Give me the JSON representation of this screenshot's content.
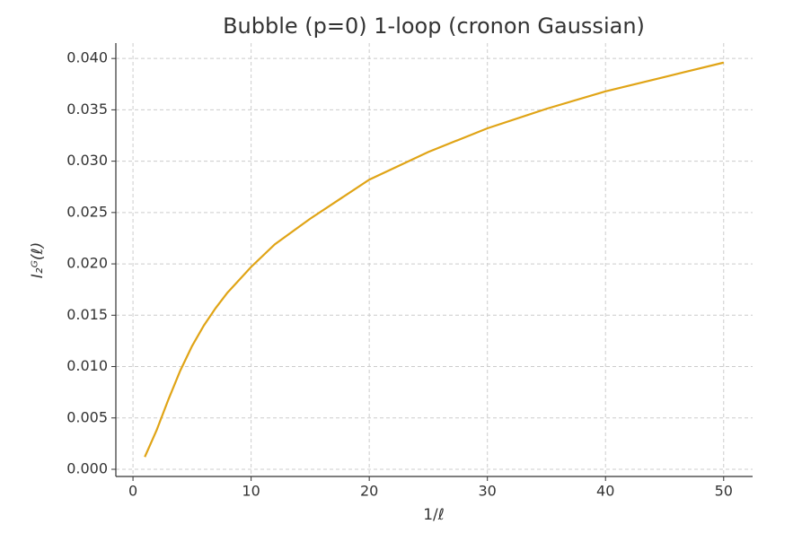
{
  "chart_data": {
    "type": "line",
    "title": "Bubble (p=0) 1-loop (cronon Gaussian)",
    "x_label": "1/ℓ",
    "y_label": "I₂ᴳ(ℓ)",
    "x": [
      1,
      2,
      3,
      4,
      5,
      6,
      7,
      8,
      10,
      12,
      15,
      20,
      25,
      30,
      35,
      40,
      45,
      50
    ],
    "series": [
      {
        "color": "#e0a416",
        "values": [
          0.0012,
          0.0038,
          0.0068,
          0.0096,
          0.012,
          0.014,
          0.0157,
          0.0172,
          0.0197,
          0.0219,
          0.0244,
          0.0282,
          0.0309,
          0.0332,
          0.0351,
          0.0368,
          0.0382,
          0.0396
        ]
      }
    ],
    "xlim": [
      -1.45,
      52.45
    ],
    "ylim": [
      -0.0007,
      0.0415
    ],
    "xticks": [
      0,
      10,
      20,
      30,
      40,
      50
    ],
    "yticks": [
      {
        "value": 0,
        "label": "0.000"
      },
      {
        "value": 0.005,
        "label": "0.005"
      },
      {
        "value": 0.01,
        "label": "0.010"
      },
      {
        "value": 0.015,
        "label": "0.015"
      },
      {
        "value": 0.02,
        "label": "0.020"
      },
      {
        "value": 0.025,
        "label": "0.025"
      },
      {
        "value": 0.03,
        "label": "0.030"
      },
      {
        "value": 0.035,
        "label": "0.035"
      },
      {
        "value": 0.04,
        "label": "0.040"
      }
    ],
    "grid": true
  }
}
